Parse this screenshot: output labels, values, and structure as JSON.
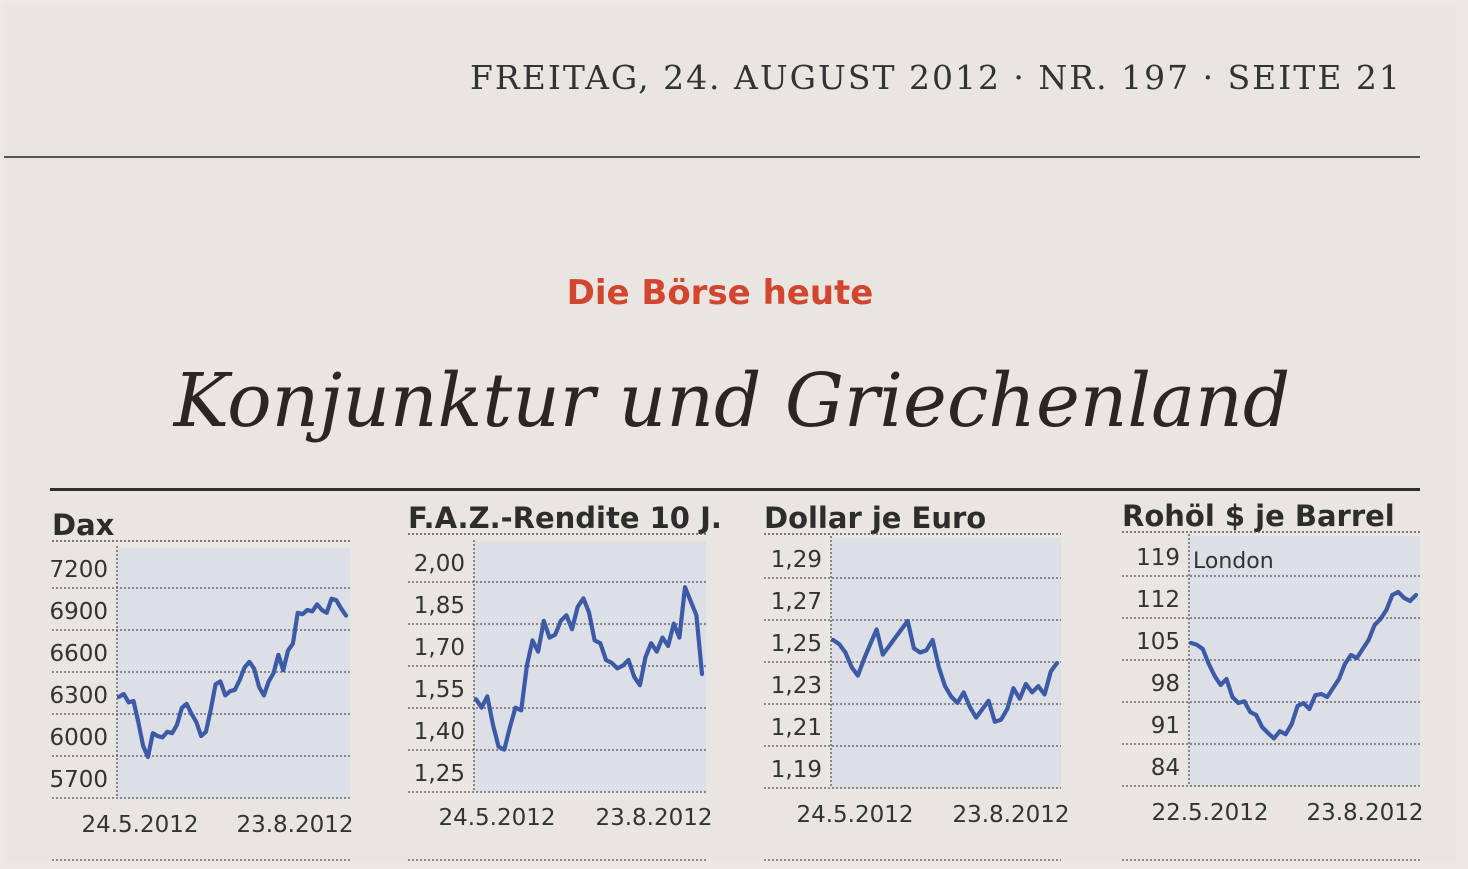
{
  "header": {
    "dateline": "FREITAG, 24. AUGUST 2012 · NR. 197 · SEITE 21",
    "kicker": "Die Börse heute",
    "headline": "Konjunktur und Griechenland"
  },
  "colors": {
    "line": "#3d5aa6",
    "plot_bg": "#dcdfe6",
    "kicker": "#d2452f"
  },
  "chart_data": [
    {
      "type": "line",
      "title": "Dax",
      "yticks": [
        "7200",
        "6900",
        "6600",
        "6300",
        "6000",
        "5700"
      ],
      "ylim": [
        5700,
        7200
      ],
      "xlabels": [
        "24.5.2012",
        "23.8.2012"
      ],
      "series": [
        {
          "values": [
            6280,
            6300,
            6240,
            6250,
            6100,
            5930,
            5850,
            6020,
            6000,
            5990,
            6030,
            6020,
            6080,
            6200,
            6230,
            6160,
            6100,
            6000,
            6030,
            6190,
            6370,
            6390,
            6290,
            6320,
            6330,
            6400,
            6490,
            6530,
            6480,
            6350,
            6290,
            6390,
            6450,
            6580,
            6470,
            6610,
            6660,
            6880,
            6870,
            6900,
            6890,
            6940,
            6900,
            6880,
            6980,
            6970,
            6910,
            6860
          ]
        }
      ]
    },
    {
      "type": "line",
      "title": "F.A.Z.-Rendite 10 J.",
      "yticks": [
        "2,00",
        "1,85",
        "1,70",
        "1,55",
        "1,40",
        "1,25"
      ],
      "ylim": [
        1.25,
        2.0
      ],
      "xlabels": [
        "24.5.2012",
        "23.8.2012"
      ],
      "series": [
        {
          "values": [
            1.51,
            1.48,
            1.52,
            1.42,
            1.34,
            1.33,
            1.41,
            1.48,
            1.47,
            1.63,
            1.72,
            1.68,
            1.79,
            1.73,
            1.74,
            1.79,
            1.81,
            1.76,
            1.84,
            1.87,
            1.82,
            1.72,
            1.71,
            1.65,
            1.64,
            1.62,
            1.63,
            1.65,
            1.59,
            1.56,
            1.66,
            1.71,
            1.68,
            1.73,
            1.7,
            1.78,
            1.73,
            1.91,
            1.86,
            1.81,
            1.6
          ]
        }
      ]
    },
    {
      "type": "line",
      "title": "Dollar je Euro",
      "yticks": [
        "1,29",
        "1,27",
        "1,25",
        "1,23",
        "1,21",
        "1,19"
      ],
      "ylim": [
        1.19,
        1.29
      ],
      "xlabels": [
        "24.5.2012",
        "23.8.2012"
      ],
      "series": [
        {
          "values": [
            1.251,
            1.249,
            1.245,
            1.238,
            1.234,
            1.242,
            1.249,
            1.256,
            1.244,
            1.248,
            1.252,
            1.256,
            1.26,
            1.247,
            1.245,
            1.246,
            1.251,
            1.238,
            1.229,
            1.224,
            1.221,
            1.226,
            1.219,
            1.214,
            1.218,
            1.222,
            1.212,
            1.213,
            1.218,
            1.228,
            1.223,
            1.23,
            1.226,
            1.229,
            1.225,
            1.236,
            1.24
          ]
        }
      ]
    },
    {
      "type": "line",
      "title": "Rohöl $ je Barrel",
      "annotation": "London",
      "yticks": [
        "119",
        "112",
        "105",
        "98",
        "91",
        "84"
      ],
      "ylim": [
        84,
        119
      ],
      "xlabels": [
        "22.5.2012",
        "23.8.2012"
      ],
      "series": [
        {
          "values": [
            104.5,
            104.2,
            103.5,
            101.0,
            99.0,
            97.5,
            98.5,
            95.5,
            94.5,
            94.8,
            93.0,
            92.5,
            90.5,
            89.5,
            88.6,
            89.8,
            89.3,
            91.0,
            94.0,
            94.5,
            93.5,
            95.8,
            96.0,
            95.5,
            97.0,
            98.5,
            101.0,
            102.5,
            102.0,
            103.5,
            105.0,
            107.5,
            108.5,
            110.0,
            112.5,
            113.0,
            112.0,
            111.5,
            112.5
          ]
        }
      ]
    }
  ]
}
